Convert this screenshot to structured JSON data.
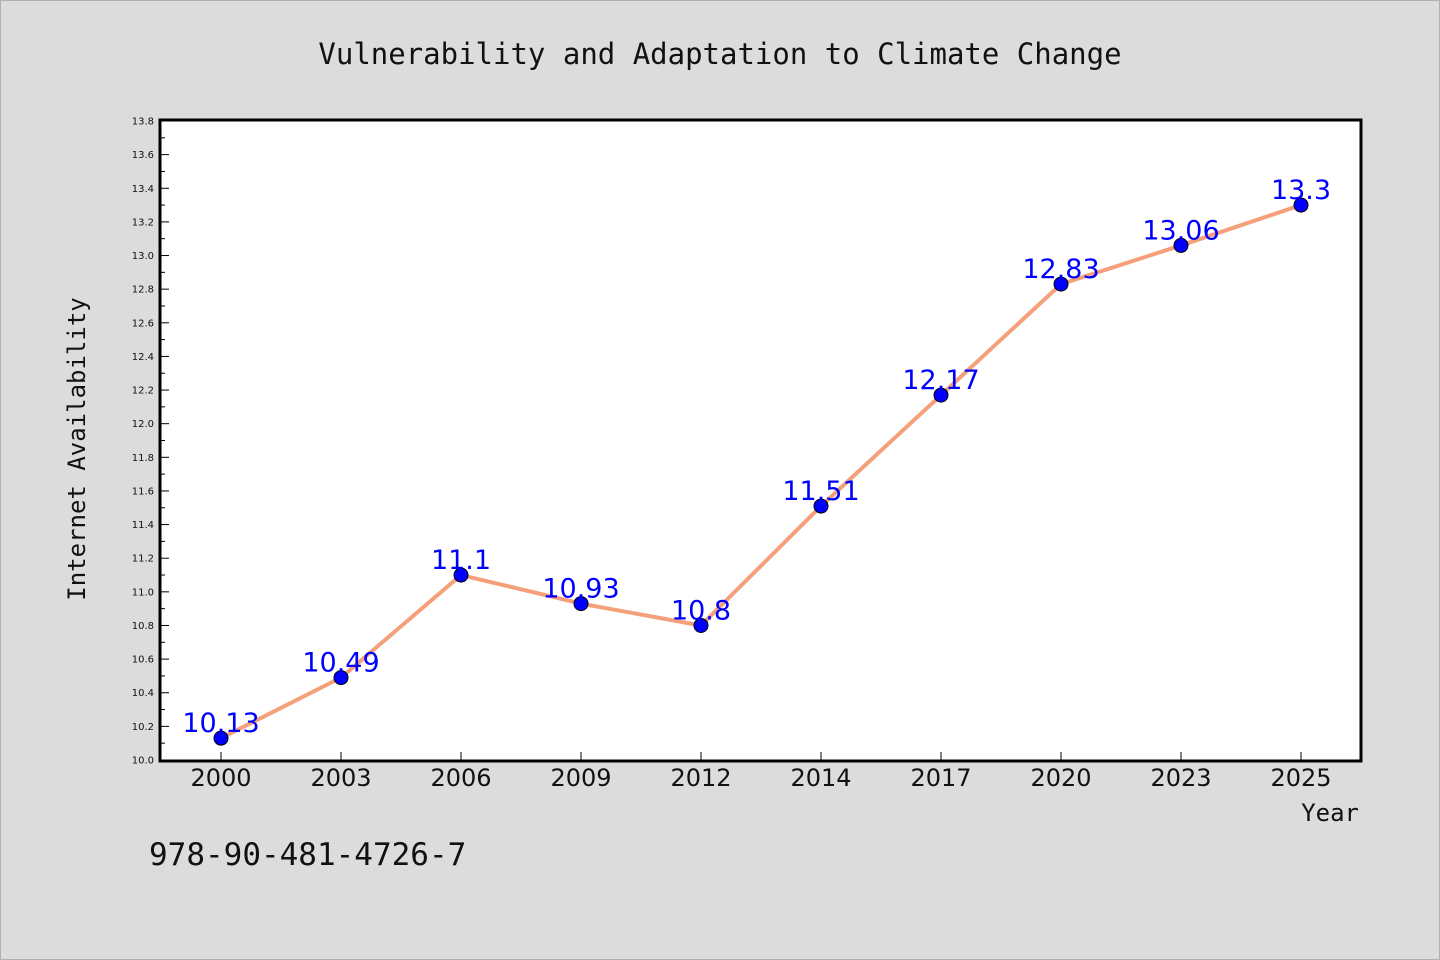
{
  "chart_data": {
    "type": "line",
    "title": "Vulnerability and Adaptation to Climate Change",
    "xlabel": "Year",
    "ylabel": "Internet Availability",
    "categories": [
      "2000",
      "2003",
      "2006",
      "2009",
      "2012",
      "2014",
      "2017",
      "2020",
      "2023",
      "2025"
    ],
    "values": [
      10.13,
      10.49,
      11.1,
      10.93,
      10.8,
      11.51,
      12.17,
      12.83,
      13.06,
      13.3
    ],
    "data_labels": [
      "10.13",
      "10.49",
      "11.1",
      "10.93",
      "10.8",
      "11.51",
      "12.17",
      "12.83",
      "13.06",
      "13.3"
    ],
    "ylim": [
      10.0,
      13.8
    ],
    "yticks": [
      "10.0",
      "10.2",
      "10.4",
      "10.6",
      "10.8",
      "11.0",
      "11.2",
      "11.4",
      "11.6",
      "11.8",
      "12.0",
      "12.2",
      "12.4",
      "12.6",
      "12.8",
      "13.0",
      "13.2",
      "13.4",
      "13.6",
      "13.8"
    ],
    "grid": false,
    "legend": "none",
    "line_color": "#f4a07a",
    "marker_color": "#0000ff",
    "label_color": "#0000ff",
    "background_color": "#dcdcdc",
    "plot_background_color": "#ffffff"
  },
  "footer_text": "978-90-481-4726-7"
}
